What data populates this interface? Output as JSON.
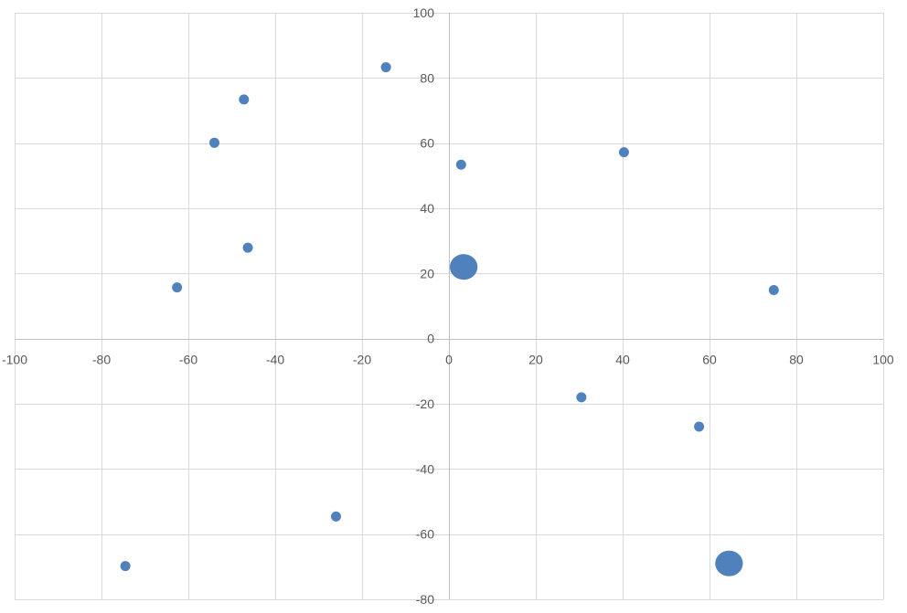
{
  "chart_data": {
    "type": "scatter",
    "title": "",
    "xlabel": "",
    "ylabel": "",
    "xlim": [
      -100,
      100
    ],
    "ylim": [
      -80,
      100
    ],
    "x_ticks": [
      -100,
      -80,
      -60,
      -40,
      -20,
      0,
      20,
      40,
      60,
      80,
      100
    ],
    "y_ticks": [
      -80,
      -60,
      -40,
      -20,
      0,
      20,
      40,
      60,
      80,
      100
    ],
    "x_tick_labels": [
      "-100",
      "-80",
      "-60",
      "-40",
      "-20",
      "0",
      "20",
      "40",
      "60",
      "80",
      "100"
    ],
    "y_tick_labels": [
      "-80",
      "-60",
      "-40",
      "-20",
      "0",
      "20",
      "40",
      "60",
      "80",
      "100"
    ],
    "grid": true,
    "legend": "none",
    "marker_color": "#4f81bd",
    "points": [
      {
        "x": -14.5,
        "y": 83.3,
        "size": 1
      },
      {
        "x": -47.2,
        "y": 73.4,
        "size": 1
      },
      {
        "x": -54.0,
        "y": 60.1,
        "size": 1
      },
      {
        "x": 2.8,
        "y": 53.4,
        "size": 1
      },
      {
        "x": 40.3,
        "y": 57.2,
        "size": 1
      },
      {
        "x": -46.3,
        "y": 27.9,
        "size": 1
      },
      {
        "x": 3.4,
        "y": 22.0,
        "size": 3
      },
      {
        "x": -62.6,
        "y": 15.7,
        "size": 1
      },
      {
        "x": 74.8,
        "y": 14.9,
        "size": 1
      },
      {
        "x": 30.5,
        "y": -18.0,
        "size": 1
      },
      {
        "x": 57.6,
        "y": -27.0,
        "size": 1
      },
      {
        "x": -26.0,
        "y": -54.6,
        "size": 1
      },
      {
        "x": -74.5,
        "y": -69.8,
        "size": 1
      },
      {
        "x": 64.5,
        "y": -69.0,
        "size": 3
      }
    ]
  }
}
